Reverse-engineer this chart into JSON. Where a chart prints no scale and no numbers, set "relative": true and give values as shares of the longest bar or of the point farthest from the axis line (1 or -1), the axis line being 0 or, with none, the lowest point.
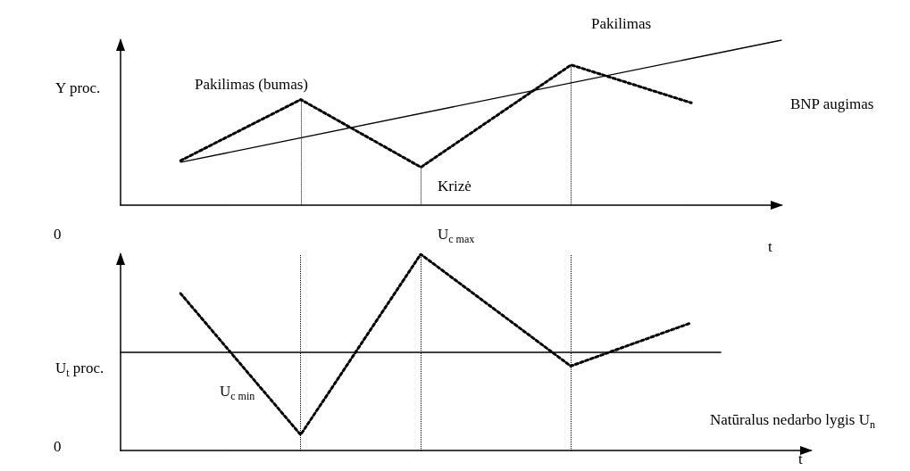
{
  "chart_data": [
    {
      "type": "line",
      "relative": true,
      "ylabel": "Y proc.",
      "xlabel": "t",
      "grid": false,
      "legend": false,
      "marker": "none",
      "categories": [
        null,
        null,
        null,
        null,
        null,
        null,
        null,
        null,
        null,
        null,
        null,
        null,
        null,
        null,
        null,
        null,
        null,
        null,
        null,
        null,
        null,
        null,
        null
      ],
      "series": [
        {
          "color": "#000000",
          "line_style": "dotted",
          "values": [
            null,
            null,
            0.27,
            null,
            null,
            null,
            0.64,
            null,
            null,
            null,
            0.23,
            null,
            null,
            null,
            null,
            0.85,
            null,
            null,
            null,
            0.62,
            null,
            null,
            null
          ]
        },
        {
          "name": "BNP augimas",
          "color": "#000000",
          "line_style": "solid",
          "values": [
            null,
            null,
            0.26,
            null,
            null,
            null,
            null,
            null,
            null,
            null,
            null,
            null,
            null,
            null,
            null,
            null,
            null,
            null,
            null,
            null,
            null,
            null,
            1
          ]
        }
      ],
      "annotations": [
        "Pakilimas (bumas)",
        "Krizė",
        "Pakilimas"
      ]
    },
    {
      "type": "line",
      "relative": true,
      "ylabel": "U$_{t}$ proc.",
      "xlabel": "t",
      "grid": false,
      "legend": false,
      "marker": "none",
      "categories": [
        null,
        null,
        null,
        null,
        null,
        null,
        null,
        null,
        null,
        null,
        null,
        null,
        null,
        null,
        null,
        null,
        null,
        null,
        null,
        null,
        null,
        null,
        null,
        null
      ],
      "series": [
        {
          "color": "#000000",
          "line_style": "dotted",
          "values": [
            null,
            null,
            0.8,
            null,
            null,
            null,
            0.08,
            null,
            null,
            null,
            1,
            null,
            null,
            null,
            null,
            0.43,
            null,
            null,
            null,
            0.65,
            null,
            null,
            null,
            null
          ]
        },
        {
          "name": "Natūralus nedarbo lygis U$_{n}$",
          "color": "#000000",
          "line_style": "solid",
          "values": [
            0.5,
            null,
            null,
            null,
            null,
            null,
            null,
            null,
            null,
            null,
            null,
            null,
            null,
            null,
            null,
            null,
            null,
            null,
            null,
            null,
            0.5,
            null,
            null,
            null
          ]
        }
      ],
      "annotations": [
        "U$_{c max}$",
        "U$_{c min}$",
        "0",
        "0"
      ]
    }
  ]
}
